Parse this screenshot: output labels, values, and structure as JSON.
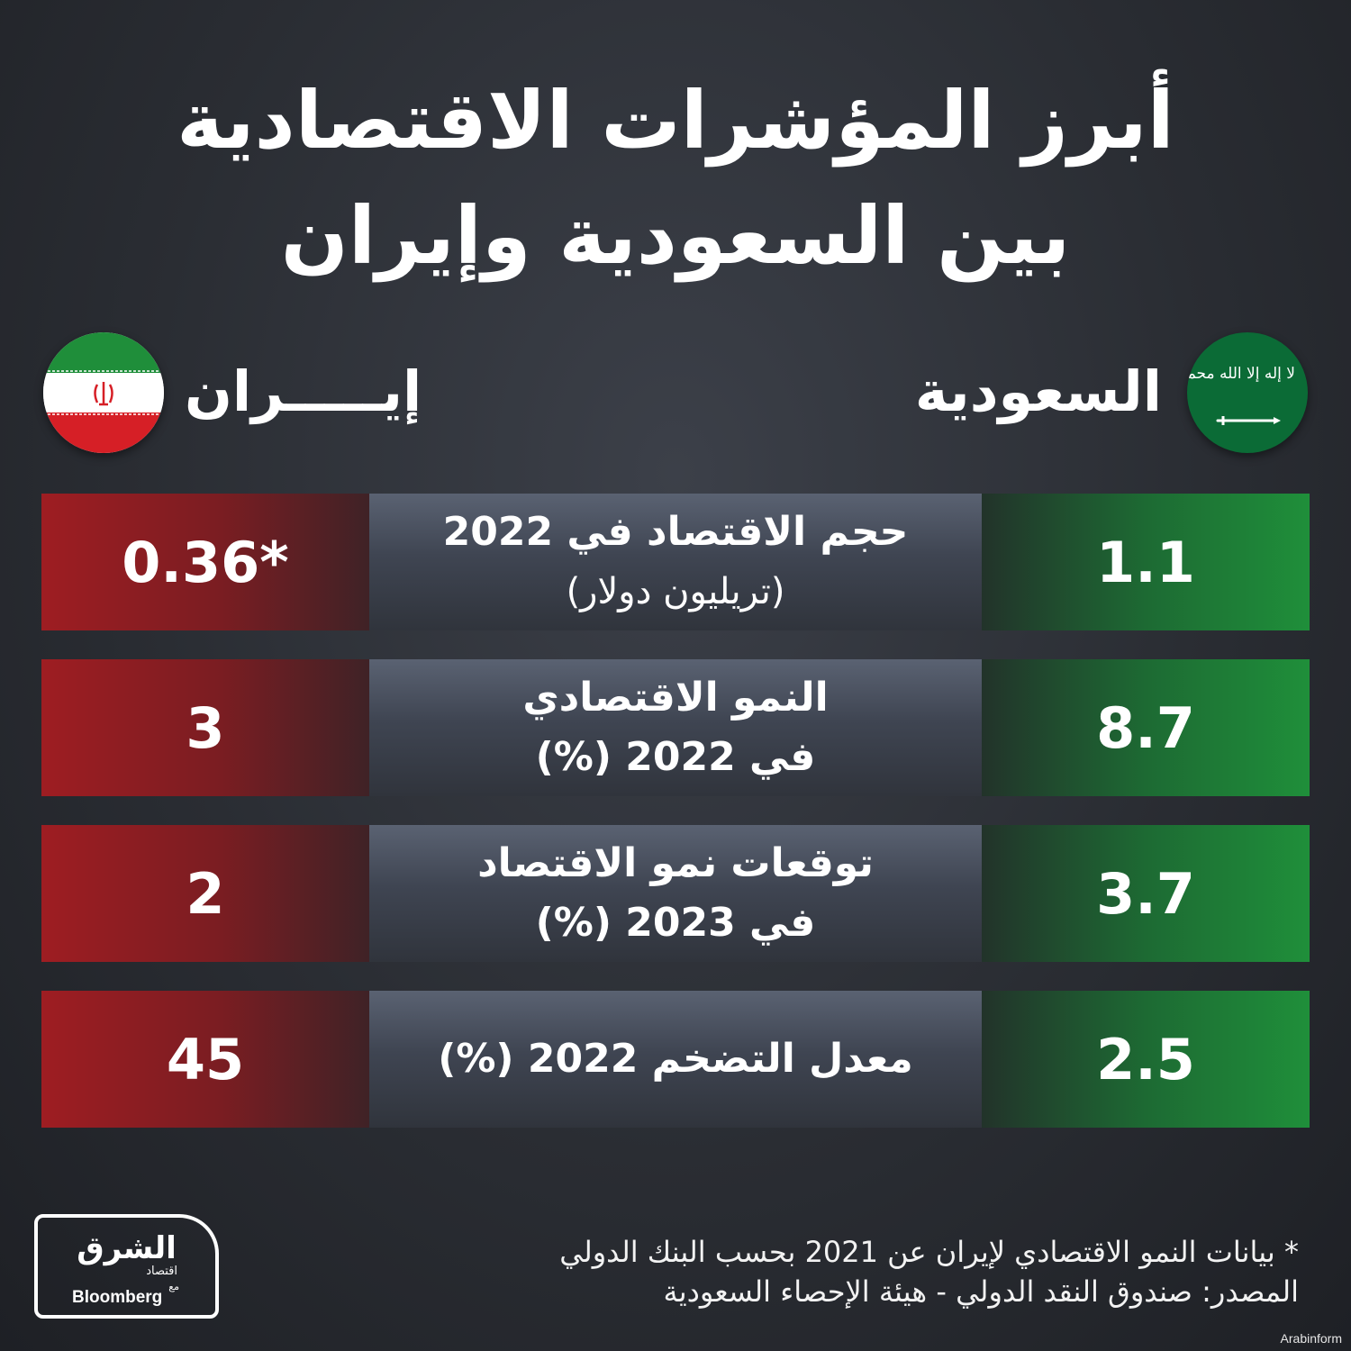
{
  "title": {
    "line1": "أبرز المؤشرات الاقتصادية",
    "line2": "بين السعودية وإيران"
  },
  "countries": {
    "saudi": {
      "label": "السعودية",
      "flag_text": "لا إله إلا الله محمد رسول الله",
      "color": "#1f8f3a"
    },
    "iran": {
      "label": "إيـــــران",
      "color": "#9e1d22"
    }
  },
  "rows": [
    {
      "label_line1": "حجم الاقتصاد في 2022",
      "label_line2": "(تريليون دولار)",
      "saudi": "1.1",
      "iran": "0.36*"
    },
    {
      "label_line1": "النمو الاقتصادي",
      "label_line2": "في 2022 (%)",
      "saudi": "8.7",
      "iran": "3"
    },
    {
      "label_line1": "توقعات نمو الاقتصاد",
      "label_line2": "في 2023 (%)",
      "saudi": "3.7",
      "iran": "2"
    },
    {
      "label_line1": "معدل التضخم 2022 (%)",
      "label_line2": "",
      "saudi": "2.5",
      "iran": "45"
    }
  ],
  "footnote": {
    "line1": "* بيانات النمو الاقتصادي لإيران عن 2021 بحسب البنك الدولي",
    "line2": "المصدر: صندوق النقد الدولي - هيئة الإحصاء السعودية"
  },
  "logo": {
    "arabic": "الشرق",
    "sub": "اقتصاد",
    "with": "مع",
    "bloomberg": "Bloomberg"
  },
  "watermark": "Arabinform"
}
